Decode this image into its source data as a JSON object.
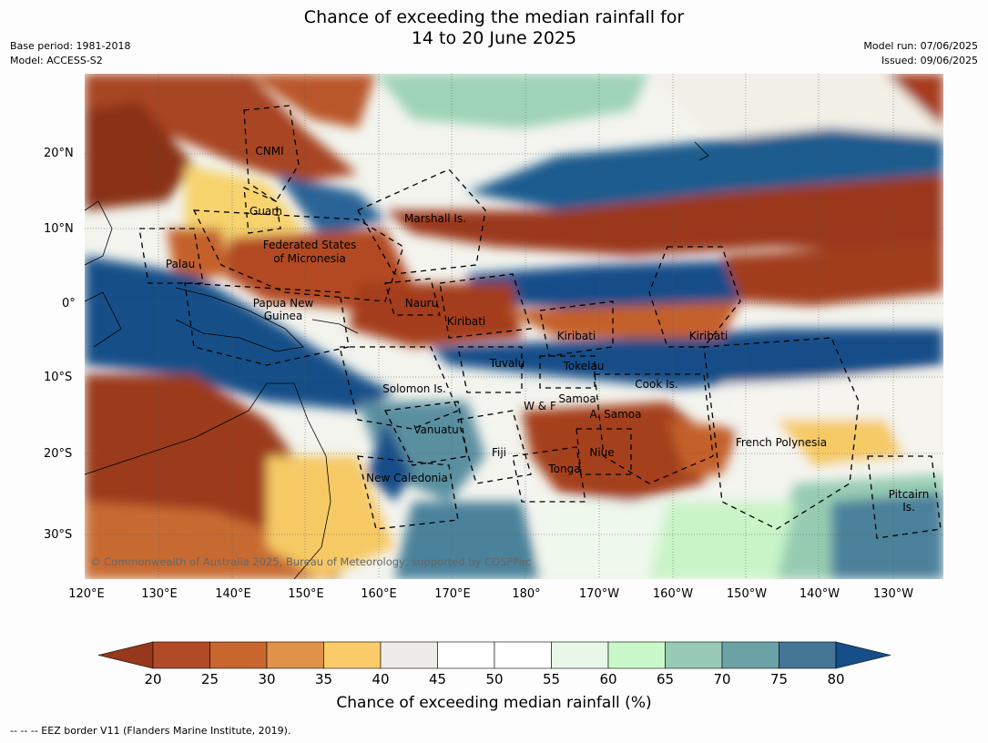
{
  "title_line1": "Chance of exceeding the median rainfall for",
  "title_line2": "14 to 20 June 2025",
  "meta": {
    "base_period": "Base period: 1981-2018",
    "model": "Model: ACCESS-S2",
    "model_run": "Model run: 07/06/2025",
    "issued": "Issued: 09/06/2025"
  },
  "lat_labels": [
    "20°N",
    "10°N",
    "0°",
    "10°S",
    "20°S",
    "30°S"
  ],
  "lon_labels": [
    "120°E",
    "130°E",
    "140°E",
    "150°E",
    "160°E",
    "170°E",
    "180°",
    "170°W",
    "160°W",
    "150°W",
    "140°W",
    "130°W"
  ],
  "regions": [
    "CNMI",
    "Guam",
    "Marshall Is.",
    "Federated States",
    "of Micronesia",
    "Palau",
    "Papua New",
    "Guinea",
    "Nauru",
    "Kiribati",
    "Kiribati",
    "Kiribati",
    "Tuvalu",
    "Tokelau",
    "Cook Is.",
    "Solomon Is.",
    "W & F",
    "Samoa",
    "A. Samoa",
    "Vanuatu",
    "Fiji",
    "Niue",
    "Tonga",
    "French Polynesia",
    "New Caledonia",
    "Pitcairn",
    "Is."
  ],
  "copyright": "© Commonwealth of Australia 2025, Bureau of Meteorology, supported by COSPPac",
  "colorbar": {
    "ticks": [
      "20",
      "25",
      "30",
      "35",
      "40",
      "45",
      "50",
      "55",
      "60",
      "65",
      "70",
      "75",
      "80"
    ],
    "colors": [
      "#97381d",
      "#b14a26",
      "#c8662e",
      "#e0914a",
      "#fccc6a",
      "#eeece8",
      "#ffffff",
      "#ffffff",
      "#e8f7e8",
      "#c9f9c8",
      "#98cbb5",
      "#6ba2a6",
      "#447696",
      "#154e89"
    ],
    "label": "Chance of exceeding median rainfall (%)"
  },
  "footer": "--  --  -- EEZ border V11 (Flanders Marine Institute, 2019)."
}
